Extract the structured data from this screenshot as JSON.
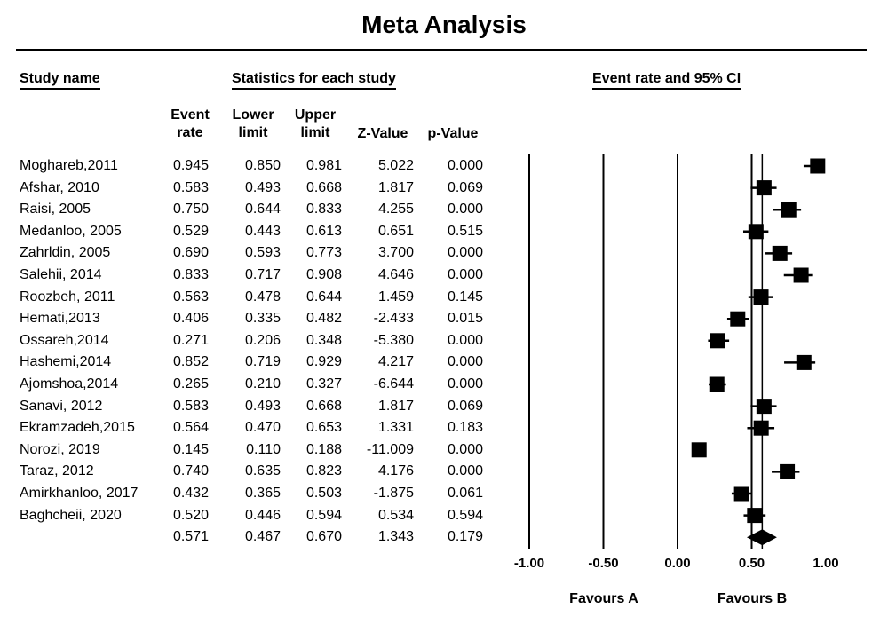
{
  "title": "Meta Analysis",
  "headers": {
    "study_name": "Study name",
    "statistics": "Statistics for each study",
    "plot": "Event rate and 95% CI",
    "columns": [
      "Event rate",
      "Lower limit",
      "Upper limit",
      "Z-Value",
      "p-Value"
    ]
  },
  "chart_data": {
    "type": "forest",
    "x_ticks": [
      "-1.00",
      "-0.50",
      "0.00",
      "0.50",
      "1.00"
    ],
    "xlim": [
      -1,
      1
    ],
    "reference_lines": [
      -1,
      -0.5,
      0,
      0.5
    ],
    "favours": {
      "left": "Favours A",
      "right": "Favours B"
    },
    "studies": [
      {
        "name": "Moghareb,2011",
        "rate": "0.945",
        "lower": "0.850",
        "upper": "0.981",
        "z": "5.022",
        "p": "0.000"
      },
      {
        "name": "Afshar, 2010",
        "rate": "0.583",
        "lower": "0.493",
        "upper": "0.668",
        "z": "1.817",
        "p": "0.069"
      },
      {
        "name": "Raisi, 2005",
        "rate": "0.750",
        "lower": "0.644",
        "upper": "0.833",
        "z": "4.255",
        "p": "0.000"
      },
      {
        "name": "Medanloo, 2005",
        "rate": "0.529",
        "lower": "0.443",
        "upper": "0.613",
        "z": "0.651",
        "p": "0.515"
      },
      {
        "name": "Zahrldin, 2005",
        "rate": "0.690",
        "lower": "0.593",
        "upper": "0.773",
        "z": "3.700",
        "p": "0.000"
      },
      {
        "name": "Salehii, 2014",
        "rate": "0.833",
        "lower": "0.717",
        "upper": "0.908",
        "z": "4.646",
        "p": "0.000"
      },
      {
        "name": "Roozbeh, 2011",
        "rate": "0.563",
        "lower": "0.478",
        "upper": "0.644",
        "z": "1.459",
        "p": "0.145"
      },
      {
        "name": "Hemati,2013",
        "rate": "0.406",
        "lower": "0.335",
        "upper": "0.482",
        "z": "-2.433",
        "p": "0.015"
      },
      {
        "name": "Ossareh,2014",
        "rate": "0.271",
        "lower": "0.206",
        "upper": "0.348",
        "z": "-5.380",
        "p": "0.000"
      },
      {
        "name": "Hashemi,2014",
        "rate": "0.852",
        "lower": "0.719",
        "upper": "0.929",
        "z": "4.217",
        "p": "0.000"
      },
      {
        "name": "Ajomshoa,2014",
        "rate": "0.265",
        "lower": "0.210",
        "upper": "0.327",
        "z": "-6.644",
        "p": "0.000"
      },
      {
        "name": "Sanavi, 2012",
        "rate": "0.583",
        "lower": "0.493",
        "upper": "0.668",
        "z": "1.817",
        "p": "0.069"
      },
      {
        "name": "Ekramzadeh,2015",
        "rate": "0.564",
        "lower": "0.470",
        "upper": "0.653",
        "z": "1.331",
        "p": "0.183"
      },
      {
        "name": "Norozi, 2019",
        "rate": "0.145",
        "lower": "0.110",
        "upper": "0.188",
        "z": "-11.009",
        "p": "0.000"
      },
      {
        "name": "Taraz, 2012",
        "rate": "0.740",
        "lower": "0.635",
        "upper": "0.823",
        "z": "4.176",
        "p": "0.000"
      },
      {
        "name": "Amirkhanloo, 2017",
        "rate": "0.432",
        "lower": "0.365",
        "upper": "0.503",
        "z": "-1.875",
        "p": "0.061"
      },
      {
        "name": "Baghcheii, 2020",
        "rate": "0.520",
        "lower": "0.446",
        "upper": "0.594",
        "z": "0.534",
        "p": "0.594"
      }
    ],
    "summary": {
      "name": "",
      "rate": "0.571",
      "lower": "0.467",
      "upper": "0.670",
      "z": "1.343",
      "p": "0.179"
    }
  }
}
